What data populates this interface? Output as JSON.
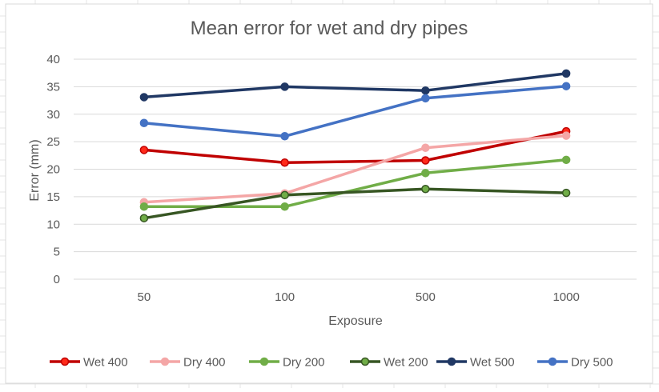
{
  "chart_data": {
    "type": "line",
    "title": "Mean error for wet and dry pipes",
    "xlabel": "Exposure",
    "ylabel": "Error (mm)",
    "categories": [
      "50",
      "100",
      "500",
      "1000"
    ],
    "ylim": [
      0,
      40
    ],
    "yticks": [
      0,
      5,
      10,
      15,
      20,
      25,
      30,
      35,
      40
    ],
    "grid": true,
    "legend_position": "bottom",
    "series": [
      {
        "name": "Wet 400",
        "color": "#C00000",
        "marker_fill": "#FF2A1A",
        "values": [
          23.5,
          21.2,
          21.6,
          26.9
        ]
      },
      {
        "name": "Dry 400",
        "color": "#F4A6A6",
        "marker_fill": "#F4A6A6",
        "values": [
          14.0,
          15.6,
          23.9,
          26.1
        ]
      },
      {
        "name": "Dry 200",
        "color": "#70AD47",
        "marker_fill": "#70AD47",
        "values": [
          13.2,
          13.2,
          19.3,
          21.7
        ]
      },
      {
        "name": "Wet 200",
        "color": "#375623",
        "marker_fill": "#70AD47",
        "values": [
          11.1,
          15.3,
          16.4,
          15.7
        ]
      },
      {
        "name": "Wet 500",
        "color": "#203864",
        "marker_fill": "#203864",
        "values": [
          33.1,
          35.0,
          34.3,
          37.4
        ]
      },
      {
        "name": "Dry 500",
        "color": "#4472C4",
        "marker_fill": "#4472C4",
        "values": [
          28.4,
          26.0,
          32.9,
          35.1
        ]
      }
    ]
  }
}
